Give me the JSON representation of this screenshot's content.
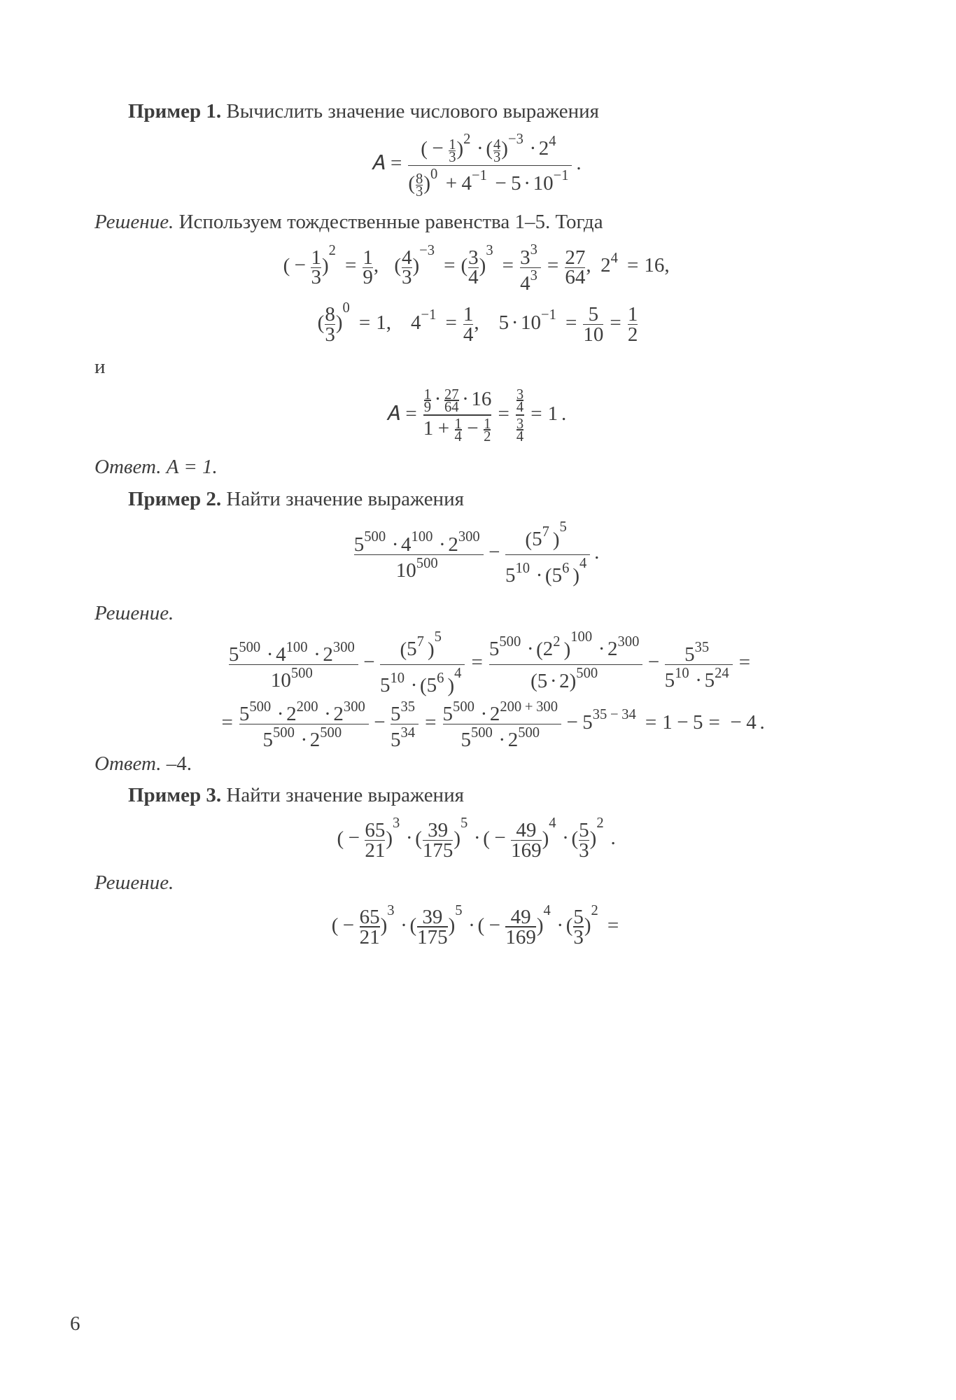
{
  "page_number": "6",
  "ex1": {
    "label": "Пример 1.",
    "prompt": " Вычислить значение числового выражения",
    "solution_label": "Решение.",
    "solution_text": " Используем тождественные равенства 1–5. Тогда",
    "connector": "и",
    "answer_label": "Ответ.",
    "answer_value": " A = 1."
  },
  "ex2": {
    "label": "Пример 2.",
    "prompt": " Найти значение выражения",
    "solution_label": "Решение.",
    "answer_label": "Ответ.",
    "answer_value": " –4."
  },
  "ex3": {
    "label": "Пример 3.",
    "prompt": " Найти значение выражения",
    "solution_label": "Решение."
  },
  "style": {
    "text_color": "#3d3d3d",
    "background": "#ffffff",
    "font_family": "Times New Roman",
    "body_fontsize_pt": 14
  }
}
